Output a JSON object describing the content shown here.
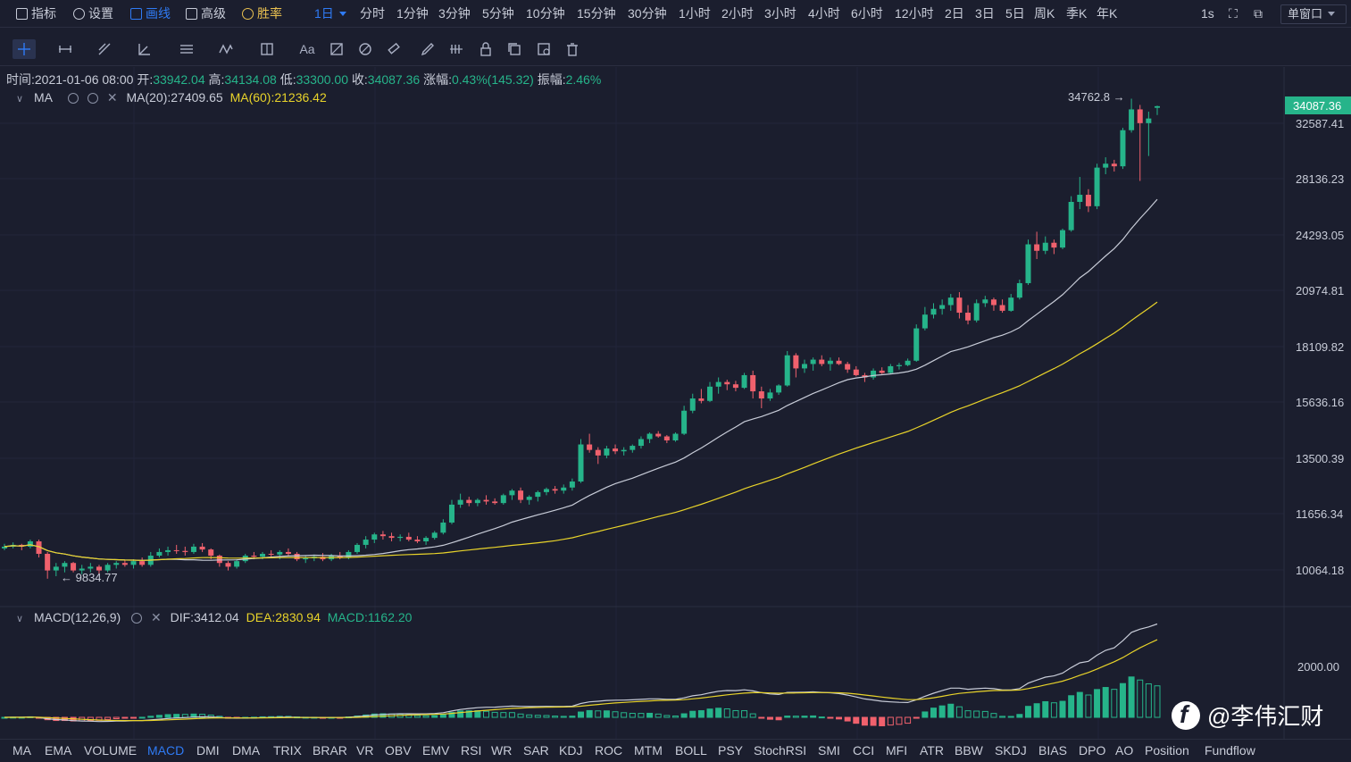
{
  "topbar": {
    "items": [
      {
        "label": "指标",
        "icon": "chart-line-icon"
      },
      {
        "label": "设置",
        "icon": "gear-icon"
      },
      {
        "label": "画线",
        "icon": "pencil-icon",
        "active": true
      },
      {
        "label": "高级",
        "icon": "briefcase-icon"
      },
      {
        "label": "胜率",
        "icon": "medal-icon",
        "gold": true
      }
    ],
    "periods": [
      "1日",
      "分时",
      "1分钟",
      "3分钟",
      "5分钟",
      "10分钟",
      "15分钟",
      "30分钟",
      "1小时",
      "2小时",
      "3小时",
      "4小时",
      "6小时",
      "12小时",
      "2日",
      "3日",
      "5日",
      "周K",
      "季K",
      "年K"
    ],
    "selected_period": "1日",
    "refresh": "1s",
    "window_mode": "单窗口"
  },
  "drawing_tools": [
    "crosshair-icon",
    "horizontal-ray-icon",
    "trend-line-icon",
    "angle-icon",
    "parallel-lines-icon",
    "wave-icon",
    "frame-icon",
    "text-tool-icon",
    "fib-icon",
    "measure-icon",
    "ruler-icon",
    "brush-icon",
    "pattern-icon",
    "lock-icon",
    "copy-icon",
    "settings-layout-icon",
    "trash-icon"
  ],
  "text_tool_label": "Aa",
  "ohlc": {
    "time_label": "时间:",
    "time": "2021-01-06 08:00",
    "open_label": "开:",
    "open": "33942.04",
    "high_label": "高:",
    "high": "34134.08",
    "low_label": "低:",
    "low": "33300.00",
    "close_label": "收:",
    "close": "34087.36",
    "change_label": "涨幅:",
    "change": "0.43%(145.32)",
    "amplitude_label": "振幅:",
    "amplitude": "2.46%"
  },
  "ma_legend": {
    "name": "MA",
    "ma20": "MA(20):27409.65",
    "ma60": "MA(60):21236.42"
  },
  "macd_legend": {
    "name": "MACD(12,26,9)",
    "dif": "DIF:3412.04",
    "dea": "DEA:2830.94",
    "macd": "MACD:1162.20"
  },
  "colors": {
    "up": "#26b48a",
    "down": "#f0616d",
    "ma20": "#c8ccd8",
    "ma60": "#e8d32a",
    "price_tag": "#26b48a",
    "bg": "#1b1e2e"
  },
  "chart_data": {
    "type": "candlestick",
    "y_ticks": [
      "34087.36",
      "32587.41",
      "28136.23",
      "24293.05",
      "20974.81",
      "18109.82",
      "15636.16",
      "13500.39",
      "11656.34",
      "10064.18"
    ],
    "current_price": "34087.36",
    "max_annotation": "34762.8",
    "min_annotation": "9834.77",
    "macd_y_tick": "2000.00",
    "candles": [
      [
        10650,
        10780,
        10600,
        10700
      ],
      [
        10700,
        10820,
        10650,
        10750
      ],
      [
        10750,
        10780,
        10600,
        10700
      ],
      [
        10700,
        10900,
        10650,
        10850
      ],
      [
        10850,
        10900,
        10400,
        10500
      ],
      [
        10500,
        10550,
        9834.77,
        10050
      ],
      [
        10050,
        10250,
        9900,
        10150
      ],
      [
        10150,
        10300,
        10000,
        10250
      ],
      [
        10250,
        10280,
        10000,
        10050
      ],
      [
        10050,
        10200,
        9950,
        10100
      ],
      [
        10100,
        10250,
        10000,
        10150
      ],
      [
        10150,
        10200,
        9950,
        10050
      ],
      [
        10050,
        10250,
        10000,
        10200
      ],
      [
        10200,
        10300,
        10100,
        10250
      ],
      [
        10250,
        10320,
        10150,
        10200
      ],
      [
        10200,
        10350,
        10100,
        10300
      ],
      [
        10300,
        10400,
        10150,
        10200
      ],
      [
        10200,
        10550,
        10150,
        10450
      ],
      [
        10450,
        10650,
        10400,
        10550
      ],
      [
        10550,
        10700,
        10450,
        10600
      ],
      [
        10600,
        10750,
        10500,
        10580
      ],
      [
        10580,
        10700,
        10450,
        10550
      ],
      [
        10550,
        10780,
        10500,
        10700
      ],
      [
        10700,
        10800,
        10550,
        10620
      ],
      [
        10620,
        10650,
        10350,
        10450
      ],
      [
        10450,
        10480,
        10150,
        10250
      ],
      [
        10250,
        10300,
        10050,
        10150
      ],
      [
        10150,
        10350,
        10100,
        10300
      ],
      [
        10300,
        10500,
        10250,
        10450
      ],
      [
        10450,
        10550,
        10350,
        10420
      ],
      [
        10420,
        10550,
        10350,
        10500
      ],
      [
        10500,
        10600,
        10400,
        10480
      ],
      [
        10480,
        10600,
        10350,
        10550
      ],
      [
        10550,
        10650,
        10450,
        10500
      ],
      [
        10500,
        10550,
        10300,
        10350
      ],
      [
        10350,
        10450,
        10250,
        10380
      ],
      [
        10380,
        10480,
        10300,
        10420
      ],
      [
        10420,
        10520,
        10300,
        10350
      ],
      [
        10350,
        10500,
        10300,
        10450
      ],
      [
        10450,
        10550,
        10350,
        10400
      ],
      [
        10400,
        10600,
        10350,
        10550
      ],
      [
        10550,
        10800,
        10500,
        10750
      ],
      [
        10750,
        11000,
        10650,
        10900
      ],
      [
        10900,
        11100,
        10800,
        11050
      ],
      [
        11050,
        11150,
        10900,
        11000
      ],
      [
        11000,
        11100,
        10850,
        10950
      ],
      [
        10950,
        11050,
        10850,
        10980
      ],
      [
        10980,
        11100,
        10850,
        10900
      ],
      [
        10900,
        11000,
        10800,
        10850
      ],
      [
        10850,
        11000,
        10750,
        10950
      ],
      [
        10950,
        11150,
        10900,
        11100
      ],
      [
        11100,
        11500,
        11050,
        11400
      ],
      [
        11400,
        12100,
        11350,
        11950
      ],
      [
        11950,
        12300,
        11850,
        12100
      ],
      [
        12100,
        12200,
        11900,
        12000
      ],
      [
        12000,
        12150,
        11900,
        12100
      ],
      [
        12100,
        12250,
        11950,
        12050
      ],
      [
        12050,
        12150,
        11950,
        12000
      ],
      [
        12000,
        12300,
        11950,
        12250
      ],
      [
        12250,
        12450,
        12100,
        12400
      ],
      [
        12400,
        12500,
        12000,
        12100
      ],
      [
        12100,
        12250,
        11950,
        12200
      ],
      [
        12200,
        12400,
        12050,
        12350
      ],
      [
        12350,
        12500,
        12250,
        12450
      ],
      [
        12450,
        12550,
        12300,
        12400
      ],
      [
        12400,
        12600,
        12300,
        12500
      ],
      [
        12500,
        12800,
        12400,
        12700
      ],
      [
        12700,
        14200,
        12650,
        14000
      ],
      [
        14000,
        14400,
        13700,
        13800
      ],
      [
        13800,
        13900,
        13300,
        13600
      ],
      [
        13600,
        13950,
        13500,
        13850
      ],
      [
        13850,
        14000,
        13650,
        13750
      ],
      [
        13750,
        13900,
        13600,
        13800
      ],
      [
        13800,
        14000,
        13700,
        13950
      ],
      [
        13950,
        14300,
        13850,
        14200
      ],
      [
        14200,
        14450,
        14050,
        14400
      ],
      [
        14400,
        14500,
        14250,
        14300
      ],
      [
        14300,
        14350,
        14050,
        14150
      ],
      [
        14150,
        14450,
        14100,
        14400
      ],
      [
        14400,
        15500,
        14350,
        15300
      ],
      [
        15300,
        16000,
        15200,
        15800
      ],
      [
        15800,
        16200,
        15600,
        15700
      ],
      [
        15700,
        16500,
        15650,
        16300
      ],
      [
        16300,
        16700,
        16000,
        16500
      ],
      [
        16500,
        16600,
        16150,
        16400
      ],
      [
        16400,
        16550,
        16100,
        16250
      ],
      [
        16250,
        16900,
        16200,
        16800
      ],
      [
        16800,
        17000,
        15800,
        16100
      ],
      [
        16100,
        16300,
        15400,
        15800
      ],
      [
        15800,
        16200,
        15700,
        16050
      ],
      [
        16050,
        16400,
        15950,
        16350
      ],
      [
        16350,
        17900,
        16300,
        17700
      ],
      [
        17700,
        17800,
        16700,
        17100
      ],
      [
        17100,
        17500,
        16900,
        17300
      ],
      [
        17300,
        17600,
        17000,
        17500
      ],
      [
        17500,
        17700,
        17200,
        17300
      ],
      [
        17300,
        17600,
        17000,
        17450
      ],
      [
        17450,
        17600,
        17250,
        17300
      ],
      [
        17300,
        17400,
        16900,
        17050
      ],
      [
        17050,
        17200,
        16750,
        16800
      ],
      [
        16800,
        16900,
        16500,
        16700
      ],
      [
        16700,
        17100,
        16600,
        17000
      ],
      [
        17000,
        17150,
        16850,
        16900
      ],
      [
        16900,
        17300,
        16850,
        17200
      ],
      [
        17200,
        17350,
        17050,
        17250
      ],
      [
        17250,
        17550,
        17200,
        17450
      ],
      [
        17450,
        19200,
        17400,
        19000
      ],
      [
        19000,
        20100,
        18900,
        19700
      ],
      [
        19700,
        20300,
        19500,
        20000
      ],
      [
        20000,
        20500,
        19700,
        20200
      ],
      [
        20200,
        20800,
        19900,
        20600
      ],
      [
        20600,
        20900,
        19500,
        19800
      ],
      [
        19800,
        20200,
        19200,
        19400
      ],
      [
        19400,
        20500,
        19300,
        20300
      ],
      [
        20300,
        20700,
        20100,
        20500
      ],
      [
        20500,
        20600,
        19900,
        20200
      ],
      [
        20200,
        20500,
        19800,
        19900
      ],
      [
        19900,
        20800,
        19850,
        20600
      ],
      [
        20600,
        21600,
        20500,
        21400
      ],
      [
        21400,
        24000,
        21300,
        23700
      ],
      [
        23700,
        24500,
        22800,
        23300
      ],
      [
        23300,
        24200,
        23100,
        23800
      ],
      [
        23800,
        24000,
        23100,
        23500
      ],
      [
        23500,
        24700,
        23400,
        24600
      ],
      [
        24600,
        26900,
        24500,
        26500
      ],
      [
        26500,
        28300,
        26000,
        27000
      ],
      [
        27000,
        27400,
        25800,
        26200
      ],
      [
        26200,
        29300,
        26000,
        29000
      ],
      [
        29000,
        29800,
        28500,
        29300
      ],
      [
        29300,
        29600,
        28700,
        29100
      ],
      [
        29100,
        32200,
        28900,
        32000
      ],
      [
        32000,
        34762.8,
        31800,
        33800
      ],
      [
        33800,
        34200,
        28000,
        32600
      ],
      [
        32600,
        33600,
        29900,
        33000
      ],
      [
        33942.04,
        34134.08,
        33300,
        34087.36
      ]
    ]
  },
  "bottom_indicators": [
    "MA",
    "EMA",
    "VOLUME",
    "MACD",
    "DMI",
    "DMA",
    "TRIX",
    "BRAR",
    "VR",
    "OBV",
    "EMV",
    "RSI",
    "WR",
    "SAR",
    "KDJ",
    "ROC",
    "MTM",
    "BOLL",
    "PSY",
    "StochRSI",
    "SMI",
    "CCI",
    "MFI",
    "ATR",
    "BBW",
    "SKDJ",
    "BIAS",
    "DPO",
    "AO",
    "Position",
    "Fundflow"
  ],
  "selected_indicator": "MACD",
  "watermark": "@李伟汇财"
}
